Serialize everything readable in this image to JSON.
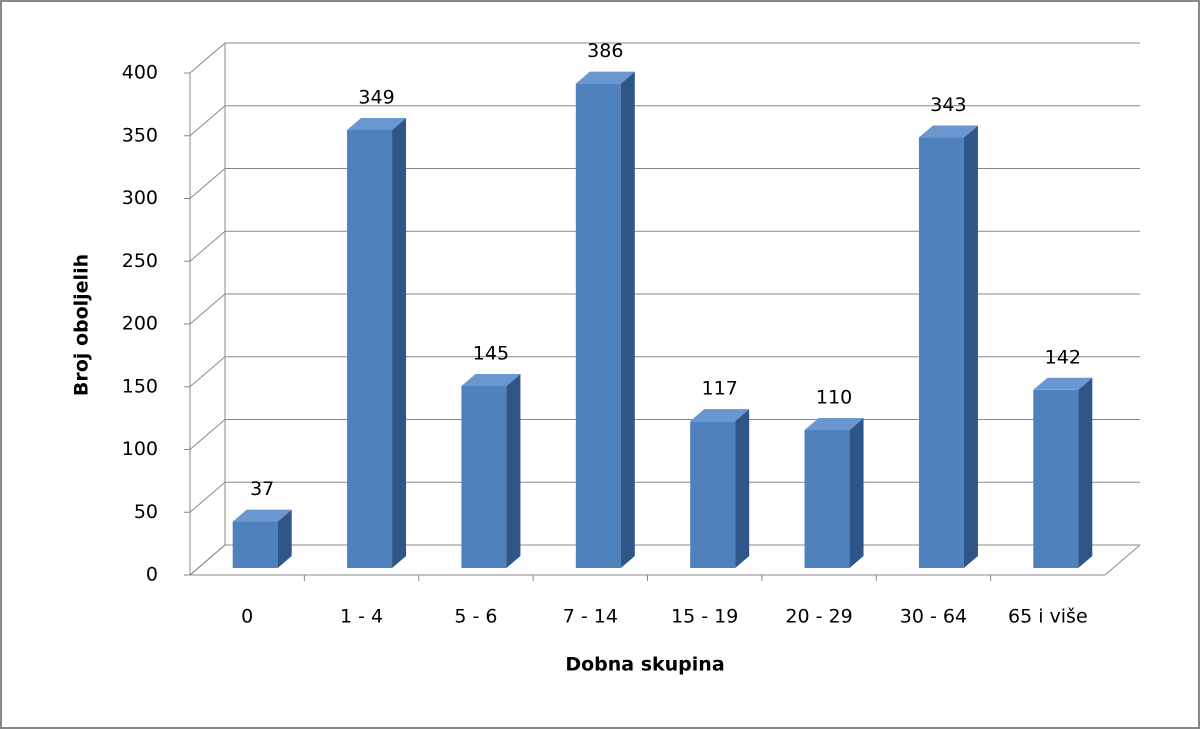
{
  "chart_data": {
    "type": "bar3d",
    "categories": [
      "0",
      "1 - 4",
      "5 - 6",
      "7 - 14",
      "15 - 19",
      "20 - 29",
      "30 - 64",
      "65 i više"
    ],
    "values": [
      37,
      349,
      145,
      386,
      117,
      110,
      343,
      142
    ],
    "color": "#4f81bd",
    "xlabel": "Dobna skupina",
    "ylabel": "Broj oboljelih",
    "ylim": [
      0,
      400
    ],
    "yticks": [
      0,
      50,
      100,
      150,
      200,
      250,
      300,
      350,
      400
    ],
    "grid": true
  }
}
